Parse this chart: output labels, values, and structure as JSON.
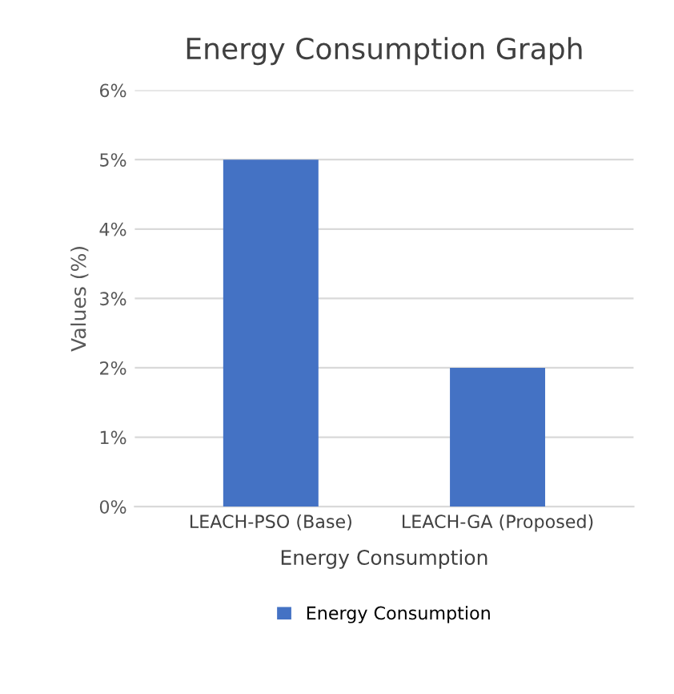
{
  "chart_data": {
    "type": "bar",
    "title": "Energy Consumption Graph",
    "xlabel": "Energy Consumption",
    "ylabel": "Values (%)",
    "categories": [
      "LEACH-PSO (Base)",
      "LEACH-GA (Proposed)"
    ],
    "series": [
      {
        "name": "Energy Consumption",
        "color": "#4472c4",
        "values": [
          5,
          2
        ]
      }
    ],
    "ylim": [
      0,
      6
    ],
    "yticks": [
      {
        "value": 0,
        "label": "0%"
      },
      {
        "value": 1,
        "label": "1%"
      },
      {
        "value": 2,
        "label": "2%"
      },
      {
        "value": 3,
        "label": "3%"
      },
      {
        "value": 4,
        "label": "4%"
      },
      {
        "value": 5,
        "label": "5%"
      },
      {
        "value": 6,
        "label": "6%"
      }
    ],
    "grid": "y",
    "legend": "bottom"
  }
}
